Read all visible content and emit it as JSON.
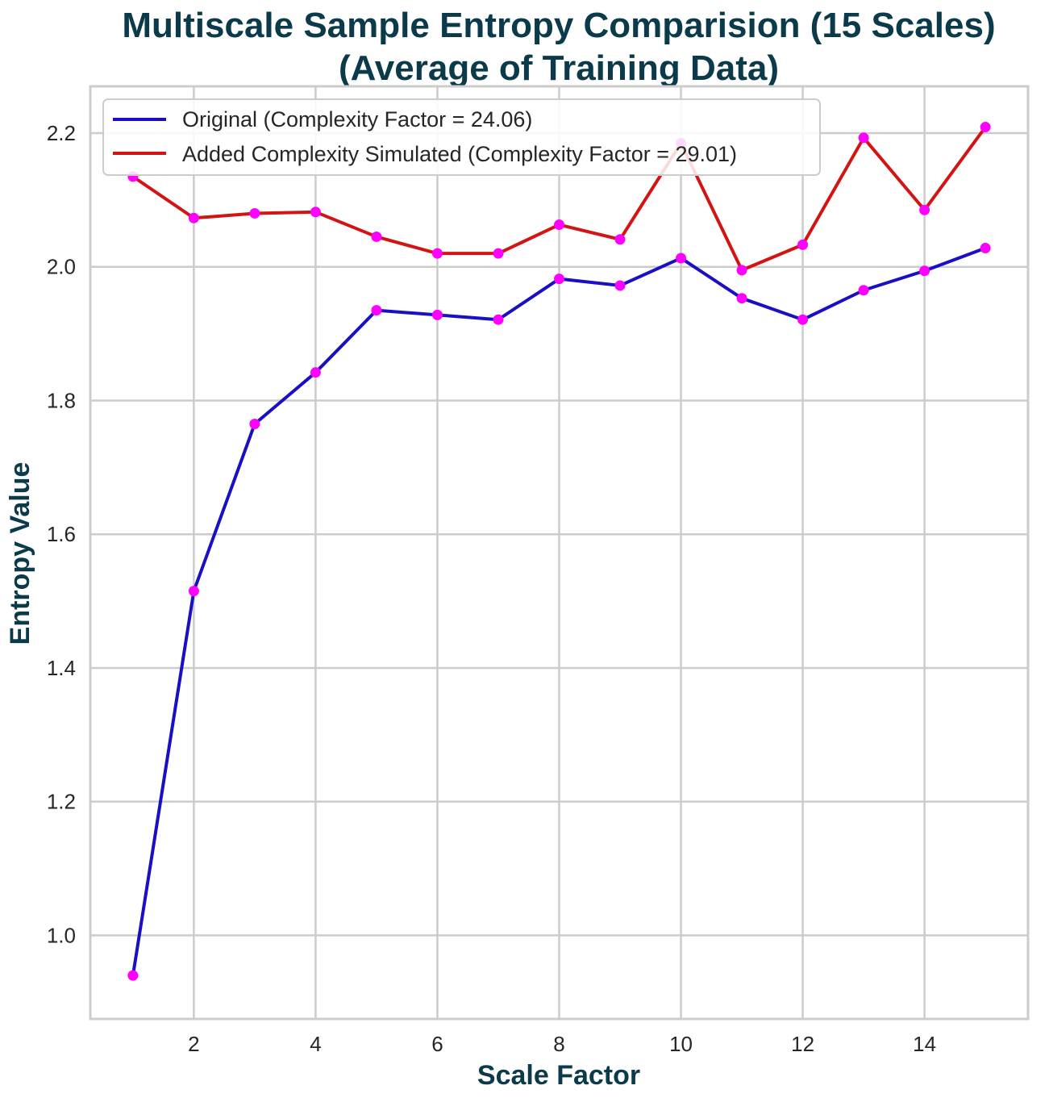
{
  "chart_data": {
    "type": "line",
    "title_line1": "Multiscale Sample Entropy Comparision (15 Scales)",
    "title_line2": "(Average of Training Data)",
    "xlabel": "Scale Factor",
    "ylabel": "Entropy Value",
    "xlim": [
      0.3,
      15.7
    ],
    "ylim": [
      0.875,
      2.27
    ],
    "xticks": [
      2,
      4,
      6,
      8,
      10,
      12,
      14
    ],
    "yticks": [
      1.0,
      1.2,
      1.4,
      1.6,
      1.8,
      2.0,
      2.2
    ],
    "grid": true,
    "legend_position": "upper-left",
    "marker_color": "#ff00ff",
    "x": [
      1,
      2,
      3,
      4,
      5,
      6,
      7,
      8,
      9,
      10,
      11,
      12,
      13,
      14,
      15
    ],
    "series": [
      {
        "name": "Original (Complexity Factor = 24.06)",
        "color": "#1a0fc4",
        "values": [
          0.94,
          1.515,
          1.765,
          1.842,
          1.935,
          1.928,
          1.921,
          1.982,
          1.972,
          2.013,
          1.953,
          1.921,
          1.965,
          1.994,
          2.028
        ]
      },
      {
        "name": "Added Complexity Simulated (Complexity Factor = 29.01)",
        "color": "#d41313",
        "values": [
          2.135,
          2.073,
          2.08,
          2.082,
          2.045,
          2.02,
          2.02,
          2.063,
          2.041,
          2.185,
          1.995,
          2.033,
          2.193,
          2.085,
          2.209
        ]
      }
    ]
  }
}
